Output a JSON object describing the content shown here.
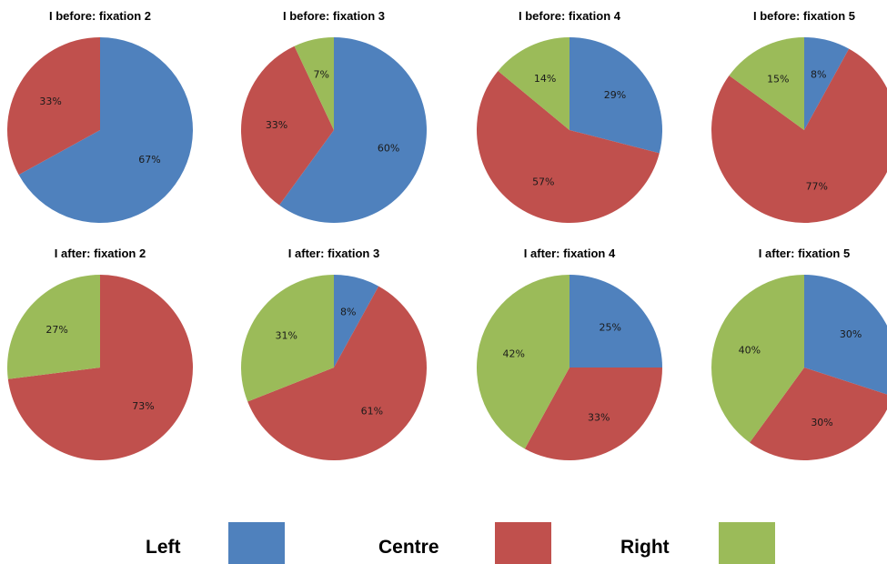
{
  "chart_data": [
    {
      "type": "pie",
      "title": "I before: fixation 2",
      "slices": [
        {
          "label": "Left",
          "value": 67,
          "text": "67%"
        },
        {
          "label": "Centre",
          "value": 33,
          "text": "33%"
        }
      ]
    },
    {
      "type": "pie",
      "title": "I before: fixation 3",
      "slices": [
        {
          "label": "Left",
          "value": 60,
          "text": "60%"
        },
        {
          "label": "Centre",
          "value": 33,
          "text": "33%"
        },
        {
          "label": "Right",
          "value": 7,
          "text": "7%"
        }
      ]
    },
    {
      "type": "pie",
      "title": "I before: fixation 4",
      "slices": [
        {
          "label": "Left",
          "value": 29,
          "text": "29%"
        },
        {
          "label": "Centre",
          "value": 57,
          "text": "57%"
        },
        {
          "label": "Right",
          "value": 14,
          "text": "14%"
        }
      ]
    },
    {
      "type": "pie",
      "title": "I before: fixation 5",
      "slices": [
        {
          "label": "Left",
          "value": 8,
          "text": "8%"
        },
        {
          "label": "Centre",
          "value": 77,
          "text": "77%"
        },
        {
          "label": "Right",
          "value": 15,
          "text": "15%"
        }
      ]
    },
    {
      "type": "pie",
      "title": "I after: fixation 2",
      "slices": [
        {
          "label": "Centre",
          "value": 73,
          "text": "73%"
        },
        {
          "label": "Right",
          "value": 27,
          "text": "27%"
        }
      ]
    },
    {
      "type": "pie",
      "title": "I after: fixation 3",
      "slices": [
        {
          "label": "Left",
          "value": 8,
          "text": "8%"
        },
        {
          "label": "Centre",
          "value": 61,
          "text": "61%"
        },
        {
          "label": "Right",
          "value": 31,
          "text": "31%"
        }
      ]
    },
    {
      "type": "pie",
      "title": "I after: fixation 4",
      "slices": [
        {
          "label": "Left",
          "value": 25,
          "text": "25%"
        },
        {
          "label": "Centre",
          "value": 33,
          "text": "33%"
        },
        {
          "label": "Right",
          "value": 42,
          "text": "42%"
        }
      ]
    },
    {
      "type": "pie",
      "title": "I after: fixation 5",
      "slices": [
        {
          "label": "Left",
          "value": 30,
          "text": "30%"
        },
        {
          "label": "Centre",
          "value": 30,
          "text": "30%"
        },
        {
          "label": "Right",
          "value": 40,
          "text": "40%"
        }
      ]
    }
  ],
  "colors": {
    "Left": "#4F81BD",
    "Centre": "#C0504D",
    "Right": "#9BBB59"
  },
  "legend": {
    "items": [
      {
        "label": "Left",
        "color": "#4F81BD"
      },
      {
        "label": "Centre",
        "color": "#C0504D"
      },
      {
        "label": "Right",
        "color": "#9BBB59"
      }
    ]
  }
}
